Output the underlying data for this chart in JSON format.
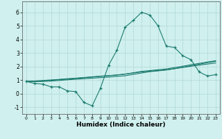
{
  "x": [
    0,
    1,
    2,
    3,
    4,
    5,
    6,
    7,
    8,
    9,
    10,
    11,
    12,
    13,
    14,
    15,
    16,
    17,
    18,
    19,
    20,
    21,
    22,
    23
  ],
  "line1": [
    0.9,
    0.75,
    0.7,
    0.5,
    0.5,
    0.2,
    0.15,
    -0.65,
    -0.9,
    0.4,
    2.1,
    3.2,
    4.9,
    5.4,
    6.0,
    5.8,
    5.0,
    3.5,
    3.4,
    2.8,
    2.5,
    1.6,
    1.3,
    1.4
  ],
  "line2": [
    0.9,
    0.88,
    0.9,
    0.93,
    0.97,
    1.02,
    1.06,
    1.1,
    1.14,
    1.18,
    1.22,
    1.27,
    1.32,
    1.42,
    1.52,
    1.62,
    1.68,
    1.74,
    1.84,
    1.95,
    2.06,
    2.17,
    2.28,
    2.38
  ],
  "line3": [
    0.9,
    0.9,
    0.94,
    0.98,
    1.03,
    1.07,
    1.12,
    1.17,
    1.22,
    1.27,
    1.32,
    1.37,
    1.44,
    1.54,
    1.64,
    1.7,
    1.76,
    1.82,
    1.92,
    2.02,
    2.13,
    2.23,
    2.33,
    2.43
  ],
  "line4": [
    0.9,
    0.93,
    0.97,
    1.01,
    1.05,
    1.1,
    1.14,
    1.19,
    1.24,
    1.29,
    1.33,
    1.38,
    1.44,
    1.52,
    1.6,
    1.65,
    1.7,
    1.76,
    1.84,
    1.93,
    2.02,
    2.1,
    2.18,
    2.26
  ],
  "color": "#1a7a6e",
  "bg_color": "#cff0ee",
  "grid_color": "#b0d8d5",
  "xlabel": "Humidex (Indice chaleur)",
  "ylim": [
    -1.5,
    6.8
  ],
  "yticks": [
    -1,
    0,
    1,
    2,
    3,
    4,
    5,
    6
  ],
  "xticks": [
    0,
    1,
    2,
    3,
    4,
    5,
    6,
    7,
    8,
    9,
    10,
    11,
    12,
    13,
    14,
    15,
    16,
    17,
    18,
    19,
    20,
    21,
    22,
    23
  ]
}
